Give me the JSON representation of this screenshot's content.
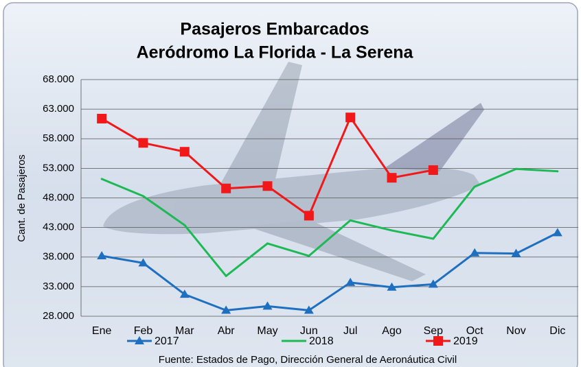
{
  "chart_data": {
    "type": "line",
    "title": "Pasajeros Embarcados",
    "subtitle": "Aeródromo La Florida - La Serena",
    "y_label": "Cant. de Pasajeros",
    "source": "Fuente: Estados de Pago, Dirección General de Aeronáutica Civil",
    "categories": [
      "Ene",
      "Feb",
      "Mar",
      "Abr",
      "May",
      "Jun",
      "Jul",
      "Ago",
      "Sep",
      "Oct",
      "Nov",
      "Dic"
    ],
    "series": [
      {
        "name": "2017",
        "color": "#1f6fc0",
        "marker": "triangle",
        "values": [
          38200,
          37000,
          31700,
          29000,
          29700,
          29000,
          33700,
          32900,
          33400,
          38700,
          38600,
          42100
        ]
      },
      {
        "name": "2018",
        "color": "#1db954",
        "marker": "none",
        "values": [
          51200,
          48300,
          43400,
          34800,
          40300,
          38200,
          44200,
          42500,
          41100,
          49900,
          52900,
          52500
        ]
      },
      {
        "name": "2019",
        "color": "#f01818",
        "marker": "square",
        "values": [
          61400,
          57300,
          55800,
          49600,
          50000,
          45000,
          61600,
          51400,
          52700,
          null,
          null,
          null
        ]
      }
    ],
    "ylim": [
      28000,
      68000
    ],
    "yticks": [
      {
        "value": 28000,
        "label": "28.000"
      },
      {
        "value": 33000,
        "label": "33.000"
      },
      {
        "value": 38000,
        "label": "38.000"
      },
      {
        "value": 43000,
        "label": "43.000"
      },
      {
        "value": 48000,
        "label": "48.000"
      },
      {
        "value": 53000,
        "label": "53.000"
      },
      {
        "value": 58000,
        "label": "58.000"
      },
      {
        "value": 63000,
        "label": "63.000"
      },
      {
        "value": 68000,
        "label": "68.000"
      }
    ],
    "grid": true,
    "legend": "bottom"
  }
}
